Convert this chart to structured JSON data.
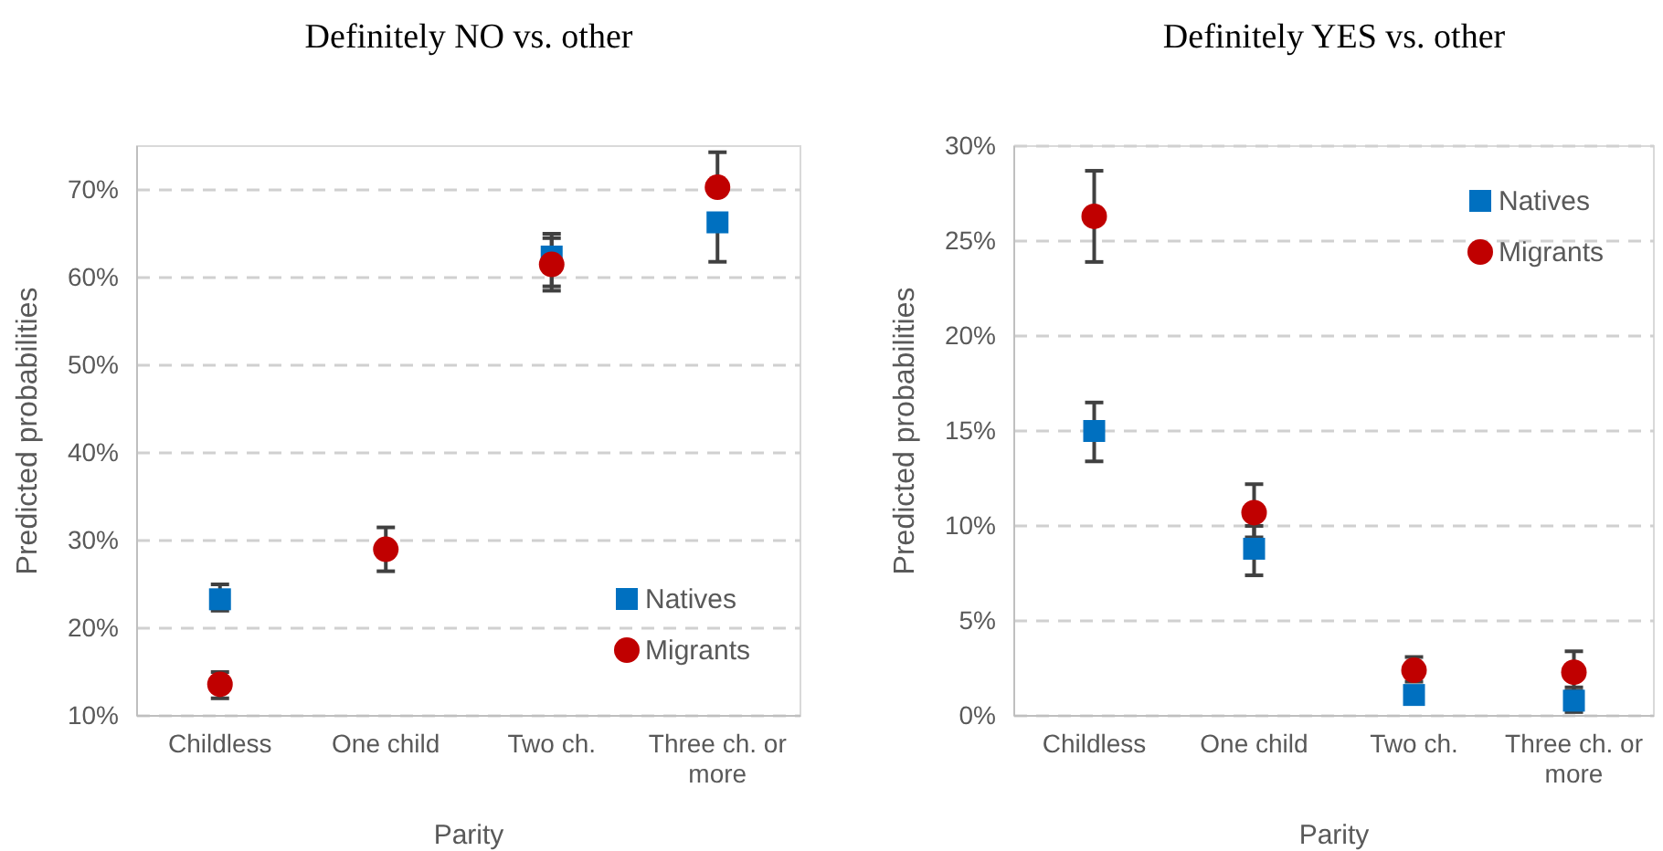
{
  "chart_data": [
    {
      "type": "scatter",
      "title": "Definitely NO vs. other",
      "xlabel": "Parity",
      "ylabel": "Predicted probabilities",
      "categories": [
        "Childless",
        "One child",
        "Two ch.",
        "Three ch. or more"
      ],
      "ylim": [
        10,
        75
      ],
      "yticks": [
        {
          "value": 10,
          "label": "10%"
        },
        {
          "value": 20,
          "label": "20%"
        },
        {
          "value": 30,
          "label": "30%"
        },
        {
          "value": 40,
          "label": "40%"
        },
        {
          "value": 50,
          "label": "50%"
        },
        {
          "value": 60,
          "label": "60%"
        },
        {
          "value": 70,
          "label": "70%"
        }
      ],
      "grid": "y",
      "legend": "bottom right",
      "series": [
        {
          "name": "Natives",
          "color": "#0070c0",
          "marker": "square",
          "values": [
            23.3,
            null,
            62.4,
            66.3
          ],
          "errors": [
            [
              22,
              25
            ],
            null,
            [
              59,
              64.5
            ],
            [
              61.8,
              66.3
            ]
          ]
        },
        {
          "name": "Migrants",
          "color": "#c00000",
          "marker": "circle",
          "values": [
            13.6,
            29,
            61.5,
            70.3
          ],
          "errors": [
            [
              12,
              15
            ],
            [
              26.5,
              31.5
            ],
            [
              58.5,
              65
            ],
            [
              70.3,
              74.3
            ]
          ]
        }
      ]
    },
    {
      "type": "scatter",
      "title": "Definitely YES vs. other",
      "xlabel": "Parity",
      "ylabel": "Predicted probabilities",
      "categories": [
        "Childless",
        "One child",
        "Two ch.",
        "Three ch. or more"
      ],
      "ylim": [
        0,
        30
      ],
      "yticks": [
        {
          "value": 0,
          "label": "0%"
        },
        {
          "value": 5,
          "label": "5%"
        },
        {
          "value": 10,
          "label": "10%"
        },
        {
          "value": 15,
          "label": "15%"
        },
        {
          "value": 20,
          "label": "20%"
        },
        {
          "value": 25,
          "label": "25%"
        },
        {
          "value": 30,
          "label": "30%"
        }
      ],
      "grid": "y",
      "legend": "top right",
      "series": [
        {
          "name": "Natives",
          "color": "#0070c0",
          "marker": "square",
          "values": [
            15,
            8.8,
            1.1,
            0.8
          ],
          "errors": [
            [
              13.4,
              16.5
            ],
            [
              7.4,
              10
            ],
            null,
            [
              0.2,
              1.5
            ]
          ]
        },
        {
          "name": "Migrants",
          "color": "#c00000",
          "marker": "circle",
          "values": [
            26.3,
            10.7,
            2.4,
            2.3
          ],
          "errors": [
            [
              23.9,
              28.7
            ],
            [
              9.4,
              12.2
            ],
            [
              1.8,
              3.1
            ],
            [
              1.3,
              3.4
            ]
          ]
        }
      ]
    }
  ]
}
